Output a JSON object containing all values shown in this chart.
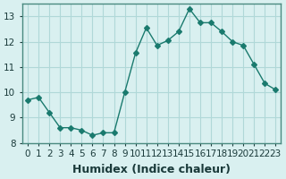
{
  "x": [
    0,
    1,
    2,
    3,
    4,
    5,
    6,
    7,
    8,
    9,
    10,
    11,
    12,
    13,
    14,
    15,
    16,
    17,
    18,
    19,
    20,
    21,
    22,
    23
  ],
  "y": [
    9.7,
    9.8,
    9.2,
    8.6,
    8.6,
    8.5,
    8.3,
    8.4,
    8.4,
    10.0,
    11.55,
    12.55,
    11.85,
    12.05,
    12.4,
    13.3,
    12.75,
    12.75,
    12.4,
    12.0,
    11.85,
    11.1,
    10.35,
    10.1
  ],
  "xlabel": "Humidex (Indice chaleur)",
  "ylabel": "",
  "line_color": "#1a7a6e",
  "marker": "D",
  "marker_size": 3,
  "bg_color": "#d9f0f0",
  "grid_color": "#b0d8d8",
  "ylim": [
    8,
    13.5
  ],
  "xlim": [
    -0.5,
    23.5
  ],
  "yticks": [
    8,
    9,
    10,
    11,
    12,
    13
  ],
  "xticks": [
    0,
    1,
    2,
    3,
    4,
    5,
    6,
    7,
    8,
    9,
    10,
    11,
    12,
    13,
    14,
    15,
    16,
    17,
    18,
    19,
    20,
    21,
    22,
    23
  ],
  "xtick_labels": [
    "0",
    "1",
    "2",
    "3",
    "4",
    "5",
    "6",
    "7",
    "8",
    "9",
    "10",
    "11",
    "12",
    "13",
    "14",
    "15",
    "16",
    "17",
    "18",
    "19",
    "20",
    "21",
    "22",
    "23"
  ],
  "xlabel_fontsize": 9,
  "tick_fontsize": 7.5
}
